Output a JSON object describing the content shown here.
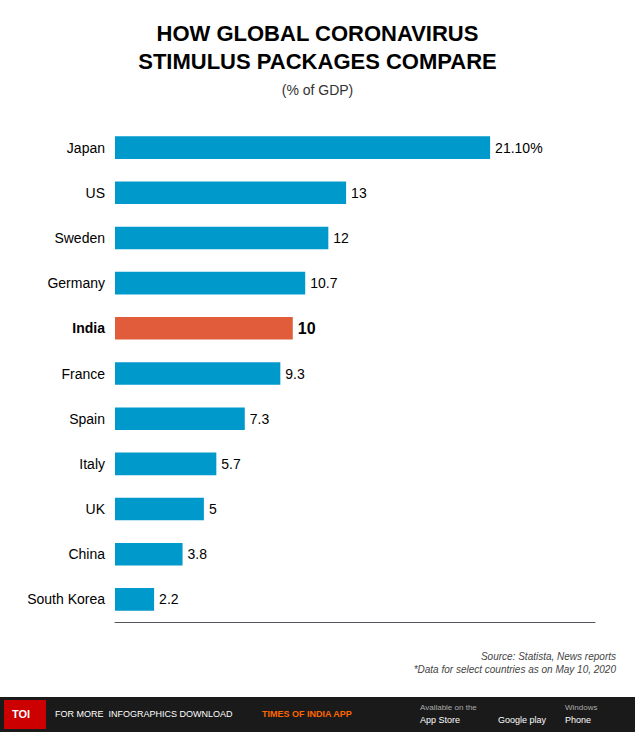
{
  "chart_data": {
    "type": "bar",
    "orientation": "horizontal",
    "title": "HOW GLOBAL CORONAVIRUS\nSTIMULUS PACKAGES COMPARE",
    "subtitle": "(% of GDP)",
    "categories": [
      "Japan",
      "US",
      "Sweden",
      "Germany",
      "India",
      "France",
      "Spain",
      "Italy",
      "UK",
      "China",
      "South Korea"
    ],
    "values": [
      21.1,
      13,
      12,
      10.7,
      10,
      9.3,
      7.3,
      5.7,
      5,
      3.8,
      2.2
    ],
    "value_labels": [
      "21.10%",
      "13",
      "12",
      "10.7",
      "10",
      "9.3",
      "7.3",
      "5.7",
      "5",
      "3.8",
      "2.2"
    ],
    "data_labels": true,
    "colors": [
      "#0099cc",
      "#0099cc",
      "#0099cc",
      "#0099cc",
      "#e05c3a",
      "#0099cc",
      "#0099cc",
      "#0099cc",
      "#0099cc",
      "#0099cc",
      "#0099cc"
    ],
    "xlim": [
      0,
      27
    ],
    "tick_labels": false,
    "grid": false,
    "annotations": [
      "Source: Statista, News reports\n*Data for select countries as on May 10, 2020",
      "TOI",
      "FOR MORE  INFOGRAPHICS DOWNLOAD",
      "TIMES OF INDIA APP",
      "Available on the",
      "App Store",
      "Google play",
      "Windows",
      "Phone"
    ]
  }
}
